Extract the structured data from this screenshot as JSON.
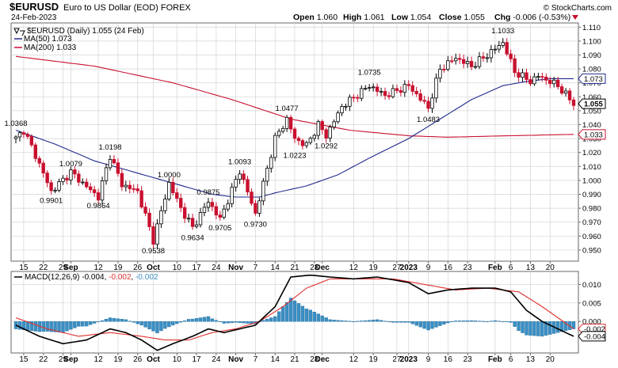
{
  "header": {
    "symbol": "$EURUSD",
    "description": "Euro to US Dollar (EOD) FOREX",
    "date": "24-Feb-2023",
    "watermark": "© StockCharts.com",
    "quote": {
      "open_label": "Open",
      "open": "1.060",
      "high_label": "High",
      "high": "1.061",
      "low_label": "Low",
      "low": "1.054",
      "close_label": "Close",
      "close": "1.055",
      "chg_label": "Chg",
      "chg": "-0.006 (-0.53%)"
    }
  },
  "colors": {
    "up": "#000000",
    "down": "#c8102e",
    "ma50": "#1f2a8c",
    "ma200": "#c8102e",
    "macd": "#000000",
    "signal": "#e03030",
    "hist": "#3a8fc4",
    "grid": "#d4d4d4"
  },
  "chart_data": [
    {
      "type": "candlestick",
      "legend": {
        "price": "$EURUSD (Daily) 1.055 (24 Feb)",
        "ma50": "MA(50) 1.073",
        "ma200": "MA(200) 1.033"
      },
      "ylim": [
        0.942,
        1.113
      ],
      "yticks": [
        "0.950",
        "0.960",
        "0.970",
        "0.980",
        "0.990",
        "1.000",
        "1.010",
        "1.020",
        "1.030",
        "1.040",
        "1.050",
        "1.060",
        "1.070",
        "1.080",
        "1.090",
        "1.100",
        "1.110"
      ],
      "value_tags": [
        {
          "value": "1.073",
          "series": "ma50"
        },
        {
          "value": "1.055",
          "series": "price"
        },
        {
          "value": "1.033",
          "series": "ma200"
        }
      ],
      "annotations": [
        {
          "text": "1.0368",
          "day": 0,
          "value": 1.0368,
          "pos": "above"
        },
        {
          "text": "1.0079",
          "day": 14,
          "value": 1.0079,
          "pos": "above"
        },
        {
          "text": "0.9901",
          "day": 9,
          "value": 0.9901,
          "pos": "below"
        },
        {
          "text": "1.0198",
          "day": 24,
          "value": 1.0198,
          "pos": "above"
        },
        {
          "text": "0.9864",
          "day": 21,
          "value": 0.9864,
          "pos": "below"
        },
        {
          "text": "1.0000",
          "day": 39,
          "value": 1.0,
          "pos": "above"
        },
        {
          "text": "0.9538",
          "day": 35,
          "value": 0.9538,
          "pos": "below"
        },
        {
          "text": "0.9875",
          "day": 49,
          "value": 0.9875,
          "pos": "above"
        },
        {
          "text": "0.9634",
          "day": 45,
          "value": 0.9634,
          "pos": "below"
        },
        {
          "text": "1.0093",
          "day": 57,
          "value": 1.0093,
          "pos": "above"
        },
        {
          "text": "0.9705",
          "day": 52,
          "value": 0.9705,
          "pos": "below"
        },
        {
          "text": "0.9730",
          "day": 61,
          "value": 0.973,
          "pos": "below"
        },
        {
          "text": "1.0477",
          "day": 69,
          "value": 1.0477,
          "pos": "above"
        },
        {
          "text": "1.0223",
          "day": 71,
          "value": 1.0223,
          "pos": "below"
        },
        {
          "text": "1.0292",
          "day": 79,
          "value": 1.0292,
          "pos": "below"
        },
        {
          "text": "1.0735",
          "day": 90,
          "value": 1.0735,
          "pos": "above"
        },
        {
          "text": "1.0483",
          "day": 105,
          "value": 1.0483,
          "pos": "below"
        },
        {
          "text": "1.1033",
          "day": 124,
          "value": 1.1033,
          "pos": "above"
        }
      ],
      "key_points": [
        {
          "day": 0,
          "value": 1.03
        },
        {
          "day": 2,
          "value": 1.036
        },
        {
          "day": 5,
          "value": 1.018
        },
        {
          "day": 9,
          "value": 0.992
        },
        {
          "day": 14,
          "value": 1.006
        },
        {
          "day": 17,
          "value": 0.998
        },
        {
          "day": 21,
          "value": 0.988
        },
        {
          "day": 24,
          "value": 1.018
        },
        {
          "day": 27,
          "value": 0.997
        },
        {
          "day": 31,
          "value": 0.992
        },
        {
          "day": 35,
          "value": 0.957
        },
        {
          "day": 39,
          "value": 0.998
        },
        {
          "day": 42,
          "value": 0.98
        },
        {
          "day": 45,
          "value": 0.966
        },
        {
          "day": 49,
          "value": 0.985
        },
        {
          "day": 52,
          "value": 0.972
        },
        {
          "day": 57,
          "value": 1.007
        },
        {
          "day": 61,
          "value": 0.976
        },
        {
          "day": 66,
          "value": 1.03
        },
        {
          "day": 69,
          "value": 1.044
        },
        {
          "day": 71,
          "value": 1.03
        },
        {
          "day": 74,
          "value": 1.025
        },
        {
          "day": 77,
          "value": 1.04
        },
        {
          "day": 79,
          "value": 1.032
        },
        {
          "day": 83,
          "value": 1.053
        },
        {
          "day": 90,
          "value": 1.068
        },
        {
          "day": 94,
          "value": 1.061
        },
        {
          "day": 100,
          "value": 1.068
        },
        {
          "day": 105,
          "value": 1.052
        },
        {
          "day": 108,
          "value": 1.08
        },
        {
          "day": 112,
          "value": 1.088
        },
        {
          "day": 116,
          "value": 1.082
        },
        {
          "day": 120,
          "value": 1.09
        },
        {
          "day": 124,
          "value": 1.099
        },
        {
          "day": 127,
          "value": 1.078
        },
        {
          "day": 131,
          "value": 1.071
        },
        {
          "day": 133,
          "value": 1.075
        },
        {
          "day": 138,
          "value": 1.068
        },
        {
          "day": 142,
          "value": 1.055
        }
      ],
      "ma50_points": [
        {
          "day": 0,
          "value": 1.036
        },
        {
          "day": 10,
          "value": 1.026
        },
        {
          "day": 20,
          "value": 1.014
        },
        {
          "day": 30,
          "value": 1.006
        },
        {
          "day": 40,
          "value": 0.998
        },
        {
          "day": 50,
          "value": 0.99
        },
        {
          "day": 56,
          "value": 0.988
        },
        {
          "day": 62,
          "value": 0.988
        },
        {
          "day": 66,
          "value": 0.991
        },
        {
          "day": 74,
          "value": 0.996
        },
        {
          "day": 82,
          "value": 1.004
        },
        {
          "day": 90,
          "value": 1.016
        },
        {
          "day": 100,
          "value": 1.03
        },
        {
          "day": 108,
          "value": 1.044
        },
        {
          "day": 116,
          "value": 1.058
        },
        {
          "day": 124,
          "value": 1.068
        },
        {
          "day": 130,
          "value": 1.071
        },
        {
          "day": 136,
          "value": 1.073
        },
        {
          "day": 142,
          "value": 1.073
        }
      ],
      "ma200_points": [
        {
          "day": 0,
          "value": 1.089
        },
        {
          "day": 20,
          "value": 1.082
        },
        {
          "day": 40,
          "value": 1.07
        },
        {
          "day": 55,
          "value": 1.058
        },
        {
          "day": 70,
          "value": 1.044
        },
        {
          "day": 85,
          "value": 1.036
        },
        {
          "day": 100,
          "value": 1.032
        },
        {
          "day": 110,
          "value": 1.031
        },
        {
          "day": 125,
          "value": 1.032
        },
        {
          "day": 142,
          "value": 1.033
        }
      ]
    },
    {
      "type": "line",
      "legend": {
        "name_label": "MACD(12,26,9)",
        "macd": "-0.004",
        "signal": "-0.002",
        "histogram": "-0.002"
      },
      "ylim": [
        -0.0085,
        0.0135
      ],
      "yticks": [
        "0.010",
        "0.005",
        "0.000"
      ],
      "value_tags": [
        {
          "value": "-0.002",
          "series": "signal"
        },
        {
          "value": "-0.004",
          "series": "macd"
        }
      ],
      "macd_points": [
        {
          "day": 0,
          "value": -0.001
        },
        {
          "day": 6,
          "value": -0.004
        },
        {
          "day": 12,
          "value": -0.006
        },
        {
          "day": 18,
          "value": -0.005
        },
        {
          "day": 24,
          "value": -0.002
        },
        {
          "day": 28,
          "value": -0.003
        },
        {
          "day": 32,
          "value": -0.005
        },
        {
          "day": 36,
          "value": -0.0078
        },
        {
          "day": 40,
          "value": -0.006
        },
        {
          "day": 45,
          "value": -0.004
        },
        {
          "day": 49,
          "value": -0.002
        },
        {
          "day": 53,
          "value": -0.003
        },
        {
          "day": 57,
          "value": -0.002
        },
        {
          "day": 61,
          "value": -0.001
        },
        {
          "day": 66,
          "value": 0.004
        },
        {
          "day": 70,
          "value": 0.012
        },
        {
          "day": 75,
          "value": 0.0125
        },
        {
          "day": 80,
          "value": 0.012
        },
        {
          "day": 86,
          "value": 0.0115
        },
        {
          "day": 92,
          "value": 0.012
        },
        {
          "day": 100,
          "value": 0.0105
        },
        {
          "day": 105,
          "value": 0.0075
        },
        {
          "day": 110,
          "value": 0.0085
        },
        {
          "day": 116,
          "value": 0.009
        },
        {
          "day": 122,
          "value": 0.009
        },
        {
          "day": 126,
          "value": 0.008
        },
        {
          "day": 130,
          "value": 0.003
        },
        {
          "day": 134,
          "value": 0.0
        },
        {
          "day": 138,
          "value": -0.002
        },
        {
          "day": 142,
          "value": -0.004
        }
      ],
      "signal_points": [
        {
          "day": 0,
          "value": 0.001
        },
        {
          "day": 8,
          "value": -0.002
        },
        {
          "day": 16,
          "value": -0.004
        },
        {
          "day": 24,
          "value": -0.003
        },
        {
          "day": 32,
          "value": -0.004
        },
        {
          "day": 38,
          "value": -0.005
        },
        {
          "day": 44,
          "value": -0.005
        },
        {
          "day": 50,
          "value": -0.003
        },
        {
          "day": 56,
          "value": -0.002
        },
        {
          "day": 62,
          "value": 0.0
        },
        {
          "day": 68,
          "value": 0.004
        },
        {
          "day": 74,
          "value": 0.009
        },
        {
          "day": 80,
          "value": 0.0115
        },
        {
          "day": 88,
          "value": 0.0115
        },
        {
          "day": 96,
          "value": 0.0115
        },
        {
          "day": 104,
          "value": 0.01
        },
        {
          "day": 112,
          "value": 0.0085
        },
        {
          "day": 120,
          "value": 0.009
        },
        {
          "day": 128,
          "value": 0.008
        },
        {
          "day": 134,
          "value": 0.004
        },
        {
          "day": 138,
          "value": 0.001
        },
        {
          "day": 142,
          "value": -0.002
        }
      ]
    }
  ],
  "x_axis": {
    "days": 143,
    "ticks": [
      {
        "label": "15",
        "day": 2,
        "bold": false
      },
      {
        "label": "22",
        "day": 7,
        "bold": false
      },
      {
        "label": "29",
        "day": 12,
        "bold": false
      },
      {
        "label": "Sep",
        "day": 14,
        "bold": true
      },
      {
        "label": "12",
        "day": 21,
        "bold": false
      },
      {
        "label": "19",
        "day": 26,
        "bold": false
      },
      {
        "label": "26",
        "day": 31,
        "bold": false
      },
      {
        "label": "Oct",
        "day": 35,
        "bold": true
      },
      {
        "label": "10",
        "day": 41,
        "bold": false
      },
      {
        "label": "17",
        "day": 46,
        "bold": false
      },
      {
        "label": "24",
        "day": 51,
        "bold": false
      },
      {
        "label": "Nov",
        "day": 56,
        "bold": true
      },
      {
        "label": "7",
        "day": 61,
        "bold": false
      },
      {
        "label": "14",
        "day": 66,
        "bold": false
      },
      {
        "label": "21",
        "day": 71,
        "bold": false
      },
      {
        "label": "28",
        "day": 76,
        "bold": false
      },
      {
        "label": "Dec",
        "day": 78,
        "bold": true
      },
      {
        "label": "12",
        "day": 86,
        "bold": false
      },
      {
        "label": "19",
        "day": 91,
        "bold": false
      },
      {
        "label": "27",
        "day": 97,
        "bold": false
      },
      {
        "label": "2023",
        "day": 100,
        "bold": true
      },
      {
        "label": "9",
        "day": 105,
        "bold": false
      },
      {
        "label": "16",
        "day": 110,
        "bold": false
      },
      {
        "label": "23",
        "day": 115,
        "bold": false
      },
      {
        "label": "Feb",
        "day": 122,
        "bold": true
      },
      {
        "label": "6",
        "day": 126,
        "bold": false
      },
      {
        "label": "13",
        "day": 131,
        "bold": false
      },
      {
        "label": "20",
        "day": 136,
        "bold": false
      }
    ]
  }
}
